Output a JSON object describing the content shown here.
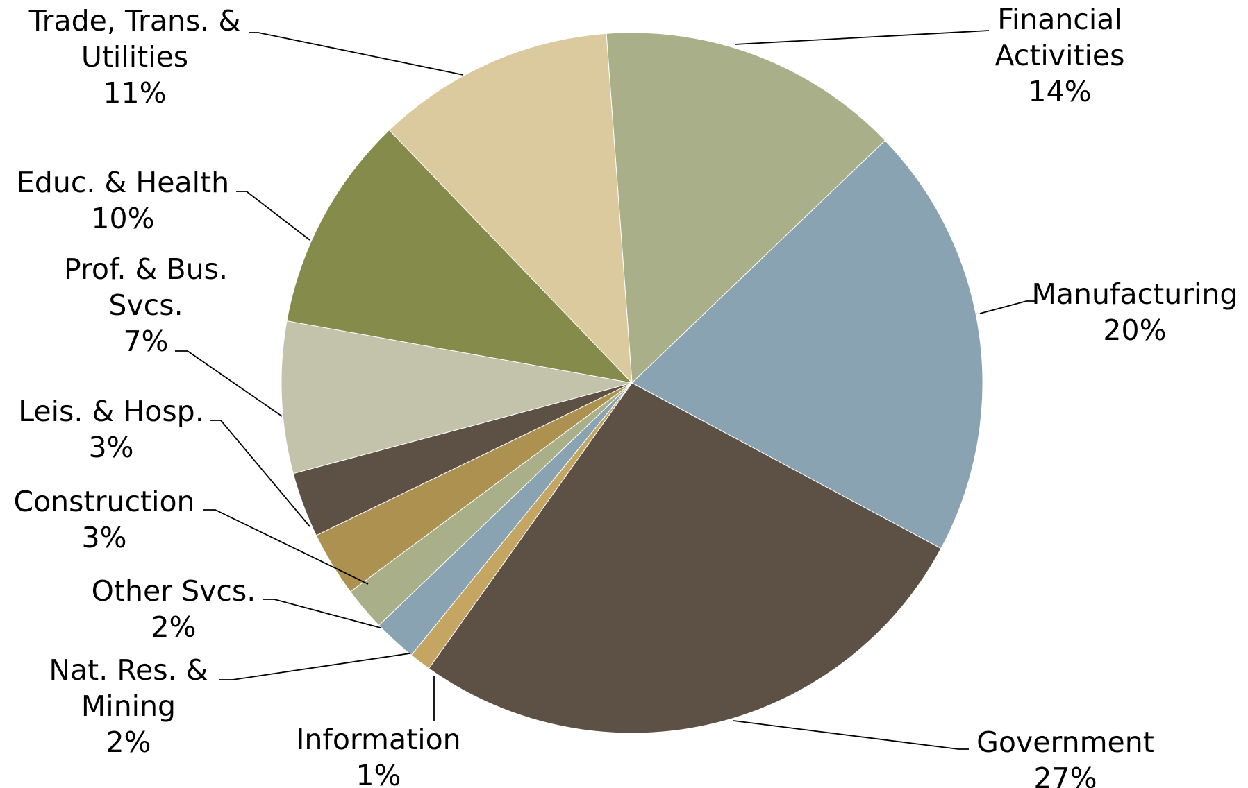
{
  "chart_data": {
    "type": "pie",
    "colors": {
      "financial": "#a8af89",
      "manufacturing": "#8aa3b2",
      "government": "#5d5145",
      "information": "#c4a561",
      "natres": "#8aa3b2",
      "other": "#a8af89",
      "construction": "#ad9150",
      "leisure": "#5d5145",
      "prof": "#c2c3aa",
      "educ": "#848b4b",
      "trade": "#dcca9f"
    },
    "slices": [
      {
        "key": "financial",
        "label_lines": [
          "Financial",
          "Activities"
        ],
        "pct_label": "14%",
        "value": 14
      },
      {
        "key": "manufacturing",
        "label_lines": [
          "Manufacturing"
        ],
        "pct_label": "20%",
        "value": 20
      },
      {
        "key": "government",
        "label_lines": [
          "Government"
        ],
        "pct_label": "27%",
        "value": 27
      },
      {
        "key": "information",
        "label_lines": [
          "Information"
        ],
        "pct_label": "1%",
        "value": 1
      },
      {
        "key": "natres",
        "label_lines": [
          "Nat. Res. &",
          "Mining"
        ],
        "pct_label": "2%",
        "value": 2
      },
      {
        "key": "other",
        "label_lines": [
          "Other Svcs."
        ],
        "pct_label": "2%",
        "value": 2
      },
      {
        "key": "construction",
        "label_lines": [
          "Construction"
        ],
        "pct_label": "3%",
        "value": 3
      },
      {
        "key": "leisure",
        "label_lines": [
          "Leis. & Hosp."
        ],
        "pct_label": "3%",
        "value": 3
      },
      {
        "key": "prof",
        "label_lines": [
          "Prof. & Bus.",
          "Svcs."
        ],
        "pct_label": "7%",
        "value": 7
      },
      {
        "key": "educ",
        "label_lines": [
          "Educ. & Health"
        ],
        "pct_label": "10%",
        "value": 10
      },
      {
        "key": "trade",
        "label_lines": [
          "Trade, Trans. &",
          "Utilities"
        ],
        "pct_label": "11%",
        "value": 11
      }
    ]
  }
}
